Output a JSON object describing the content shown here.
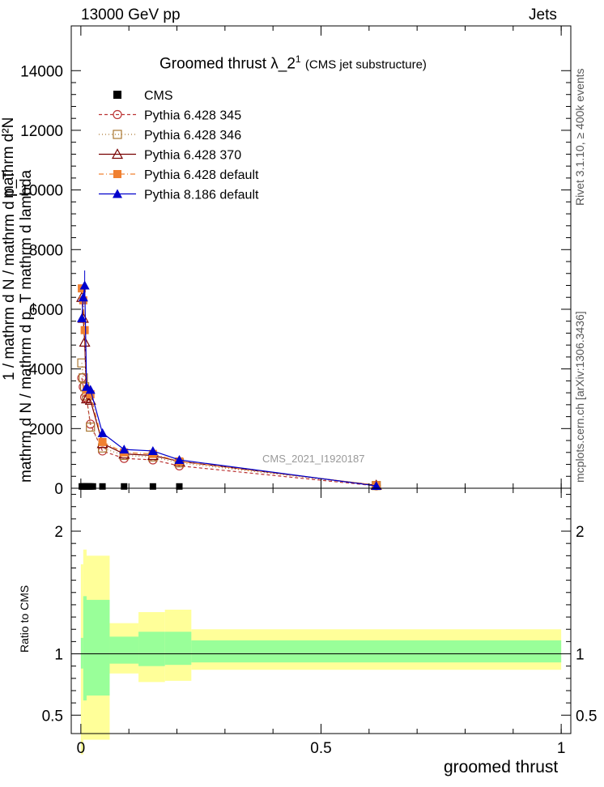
{
  "header": {
    "left": "13000 GeV pp",
    "right": "Jets"
  },
  "side_labels": {
    "rivet": "Rivet 3.1.10, ≥ 400k events",
    "mcplots": "mcplots.cern.ch [arXiv:1306.3436]"
  },
  "plot_title": {
    "main": "Groomed thrust  λ_2",
    "sup": "1",
    "sub": "(CMS jet substructure)"
  },
  "y_title_lines": [
    "mathrm d N / mathrm d p_T mathrm d lambda",
    "1 / mathrm d N / mathrm d p_T",
    "mathrm d²N"
  ],
  "watermark": "CMS_2021_I1920187",
  "ratio_ylabel": "Ratio to CMS",
  "xlabel": "groomed thrust",
  "colors": {
    "band_outer": "#ffff99",
    "band_inner": "#99ff99",
    "p345": "#bb3333",
    "p346": "#aa7733",
    "p370": "#770000",
    "p6def": "#f08030",
    "p8def": "#0000cc"
  },
  "chart_data": {
    "type": "line",
    "xlabel": "groomed thrust",
    "xlim": [
      -0.02,
      1.02
    ],
    "main_ylim": [
      0,
      15500
    ],
    "main_yticks": [
      0,
      2000,
      4000,
      6000,
      8000,
      10000,
      12000,
      14000
    ],
    "main_ytick_labels": [
      "0",
      "2000",
      "4000",
      "6000",
      "8000",
      "10000",
      "12000",
      "14000"
    ],
    "ratio_ylim": [
      0.35,
      2.35
    ],
    "ratio_yticks": [
      0.5,
      1,
      2
    ],
    "ratio_ytick_labels": [
      "0.5",
      "1",
      "2"
    ],
    "xticks": [
      0,
      0.5,
      1
    ],
    "xtick_labels": [
      "0",
      "0.5",
      "1"
    ],
    "legend_position": "top-left",
    "cms": {
      "name": "CMS",
      "x": [
        0.002,
        0.005,
        0.008,
        0.012,
        0.016,
        0.02,
        0.025,
        0.045,
        0.09,
        0.15,
        0.205
      ],
      "y": [
        60,
        60,
        60,
        60,
        60,
        60,
        60,
        60,
        60,
        60,
        60
      ]
    },
    "series": [
      {
        "name": "Pythia 6.428 345",
        "key": "p345",
        "marker": "circle",
        "dash": "4,3",
        "x": [
          0.002,
          0.005,
          0.008,
          0.012,
          0.02,
          0.045,
          0.09,
          0.15,
          0.205,
          0.615
        ],
        "y": [
          3700,
          3400,
          3050,
          3000,
          2150,
          1250,
          1000,
          950,
          750,
          80
        ]
      },
      {
        "name": "Pythia 6.428 346",
        "key": "p346",
        "marker": "square",
        "dash": "1,3",
        "x": [
          0.002,
          0.005,
          0.008,
          0.012,
          0.02,
          0.045,
          0.09,
          0.15,
          0.205,
          0.615
        ],
        "y": [
          4200,
          3700,
          3400,
          3100,
          2050,
          1350,
          1100,
          1050,
          850,
          90
        ]
      },
      {
        "name": "Pythia 6.428 370",
        "key": "p370",
        "marker": "triangle-open",
        "dash": "",
        "x": [
          0.002,
          0.005,
          0.008,
          0.012,
          0.02,
          0.045,
          0.09,
          0.15,
          0.205,
          0.615
        ],
        "y": [
          6400,
          5700,
          4900,
          3000,
          2950,
          1500,
          1150,
          1100,
          900,
          100
        ]
      },
      {
        "name": "Pythia 6.428 default",
        "key": "p6def",
        "marker": "square-filled",
        "dash": "6,3,1,3",
        "x": [
          0.002,
          0.005,
          0.008,
          0.012,
          0.02,
          0.045,
          0.09,
          0.15,
          0.205,
          0.615
        ],
        "y": [
          6700,
          6300,
          5300,
          3300,
          3150,
          1550,
          1200,
          1150,
          900,
          100
        ]
      },
      {
        "name": "Pythia 8.186 default",
        "key": "p8def",
        "marker": "triangle-filled",
        "dash": "",
        "x": [
          0.002,
          0.005,
          0.008,
          0.012,
          0.02,
          0.045,
          0.09,
          0.15,
          0.205,
          0.615
        ],
        "y": [
          5700,
          6400,
          6800,
          3400,
          3300,
          1850,
          1300,
          1250,
          950,
          80
        ]
      }
    ],
    "ratio_bands": [
      {
        "x0": 0.0,
        "x1": 0.005,
        "outer": [
          0.18,
          1.73
        ],
        "inner": [
          0.88,
          1.13
        ]
      },
      {
        "x0": 0.005,
        "x1": 0.012,
        "outer": [
          0.3,
          1.85
        ],
        "inner": [
          0.62,
          1.47
        ]
      },
      {
        "x0": 0.012,
        "x1": 0.06,
        "outer": [
          0.3,
          1.8
        ],
        "inner": [
          0.66,
          1.44
        ]
      },
      {
        "x0": 0.06,
        "x1": 0.12,
        "outer": [
          0.84,
          1.25
        ],
        "inner": [
          0.92,
          1.14
        ]
      },
      {
        "x0": 0.12,
        "x1": 0.175,
        "outer": [
          0.77,
          1.34
        ],
        "inner": [
          0.9,
          1.18
        ]
      },
      {
        "x0": 0.175,
        "x1": 0.23,
        "outer": [
          0.78,
          1.36
        ],
        "inner": [
          0.91,
          1.18
        ]
      },
      {
        "x0": 0.23,
        "x1": 1.0,
        "outer": [
          0.87,
          1.2
        ],
        "inner": [
          0.93,
          1.11
        ]
      }
    ]
  }
}
